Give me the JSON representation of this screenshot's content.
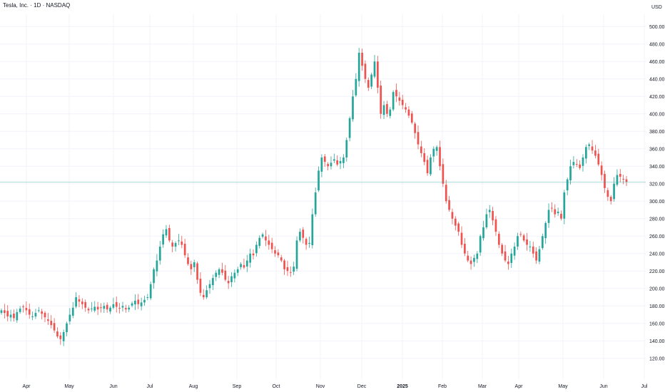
{
  "header": {
    "symbol_title": "Tesla, Inc. · 1D · NASDAQ",
    "currency": "USD"
  },
  "colors": {
    "up": "#26a69a",
    "down": "#ef5350",
    "grid": "#f0f3fa",
    "axis_text": "#131722",
    "price_line": "#26a69a"
  },
  "chart_data": {
    "type": "candlestick",
    "title": "Tesla, Inc. · 1D · NASDAQ",
    "xlabel": "",
    "ylabel": "USD",
    "ylim": [
      110,
      510
    ],
    "y_ticks": [
      120,
      140,
      160,
      180,
      200,
      220,
      240,
      260,
      280,
      300,
      320,
      340,
      360,
      380,
      400,
      420,
      440,
      460,
      480,
      500
    ],
    "y_tick_labels": [
      "120.00",
      "140.00",
      "160.00",
      "180.00",
      "200.00",
      "220.00",
      "240.00",
      "260.00",
      "280.00",
      "300.00",
      "320.00",
      "340.00",
      "360.00",
      "380.00",
      "400.00",
      "420.00",
      "440.00",
      "460.00",
      "480.00",
      "500.00"
    ],
    "x_ticks": [
      "Apr",
      "May",
      "Jun",
      "Jul",
      "Aug",
      "Sep",
      "Oct",
      "Nov",
      "Dec",
      "2025",
      "Feb",
      "Mar",
      "Apr",
      "May",
      "Jun",
      "Jul"
    ],
    "grid": true,
    "last_price": 322,
    "closes": [
      175,
      172,
      168,
      170,
      166,
      173,
      177,
      179,
      175,
      170,
      168,
      172,
      175,
      171,
      167,
      163,
      158,
      152,
      145,
      142,
      150,
      160,
      170,
      178,
      190,
      185,
      182,
      178,
      175,
      177,
      179,
      176,
      178,
      180,
      176,
      178,
      182,
      179,
      177,
      180,
      176,
      178,
      183,
      186,
      182,
      184,
      187,
      190,
      205,
      222,
      232,
      248,
      262,
      268,
      255,
      248,
      252,
      255,
      250,
      238,
      228,
      222,
      230,
      210,
      195,
      190,
      198,
      205,
      212,
      218,
      222,
      218,
      210,
      206,
      214,
      218,
      222,
      228,
      224,
      232,
      240,
      238,
      250,
      258,
      262,
      255,
      250,
      245,
      240,
      238,
      232,
      222,
      220,
      218,
      225,
      255,
      265,
      258,
      250,
      252,
      285,
      310,
      335,
      350,
      345,
      340,
      344,
      348,
      342,
      346,
      350,
      370,
      395,
      420,
      440,
      470,
      455,
      440,
      430,
      445,
      460,
      430,
      400,
      410,
      400,
      405,
      425,
      420,
      415,
      410,
      405,
      398,
      390,
      378,
      365,
      355,
      345,
      332,
      350,
      360,
      362,
      340,
      320,
      300,
      290,
      280,
      272,
      265,
      250,
      240,
      232,
      228,
      235,
      240,
      260,
      270,
      285,
      290,
      278,
      265,
      250,
      240,
      232,
      228,
      240,
      248,
      260,
      262,
      255,
      250,
      248,
      240,
      232,
      245,
      260,
      275,
      290,
      292,
      285,
      288,
      280,
      310,
      325,
      340,
      345,
      342,
      338,
      350,
      362,
      365,
      358,
      352,
      342,
      330,
      315,
      305,
      300,
      320,
      330,
      328,
      325,
      322
    ]
  }
}
